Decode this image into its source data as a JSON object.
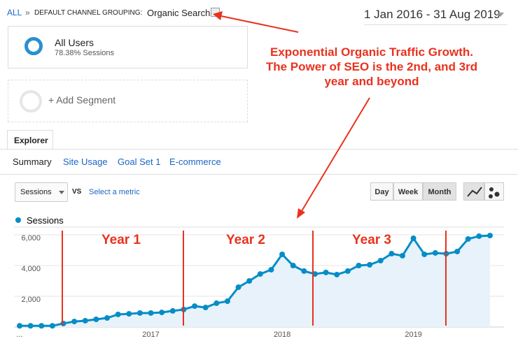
{
  "ui": {
    "breadcrumb": {
      "root": "ALL",
      "separator": "»",
      "dimension": "DEFAULT CHANNEL GROUPING:",
      "value": "Organic Search"
    },
    "date_range": "1 Jan 2016 - 31 Aug 2019",
    "segment": {
      "name": "All Users",
      "detail": "78.38% Sessions"
    },
    "add_segment": "+ Add Segment",
    "callout": [
      "Exponential Organic Traffic Growth.",
      "The Power of SEO is the 2nd, and 3rd",
      "year and beyond"
    ],
    "tab": "Explorer",
    "subtabs": [
      "Summary",
      "Site Usage",
      "Goal Set 1",
      "E-commerce"
    ],
    "metric": "Sessions",
    "vs": "VS",
    "select_metric": "Select a metric",
    "periods": [
      "Day",
      "Week",
      "Month"
    ]
  },
  "chart_data": {
    "type": "line",
    "categories": [
      "...",
      null,
      null,
      null,
      null,
      null,
      null,
      null,
      null,
      null,
      null,
      null,
      "2017",
      null,
      null,
      null,
      null,
      null,
      null,
      null,
      null,
      null,
      null,
      null,
      "2018",
      null,
      null,
      null,
      null,
      null,
      null,
      null,
      null,
      null,
      null,
      null,
      "2019",
      null,
      null,
      null,
      null,
      null,
      null,
      null
    ],
    "series": [
      {
        "name": "Sessions",
        "color": "#058dc7",
        "values": [
          80,
          80,
          80,
          80,
          230,
          360,
          410,
          500,
          590,
          820,
          860,
          910,
          910,
          950,
          1050,
          1140,
          1360,
          1270,
          1550,
          1680,
          2590,
          3000,
          3450,
          3730,
          4730,
          4000,
          3640,
          3450,
          3550,
          3410,
          3640,
          4000,
          4050,
          4320,
          4770,
          4640,
          5770,
          4730,
          4820,
          4770,
          4910,
          5730,
          5910,
          5950
        ]
      }
    ],
    "ylim": [
      0,
      6500
    ],
    "yticks": [
      {
        "value": 2000,
        "label": "2,000"
      },
      {
        "value": 4000,
        "label": "4,000"
      },
      {
        "value": 6000,
        "label": "6,000"
      }
    ],
    "grid": true,
    "annotations": [
      "Year 1",
      "Year 2",
      "Year 3"
    ]
  }
}
